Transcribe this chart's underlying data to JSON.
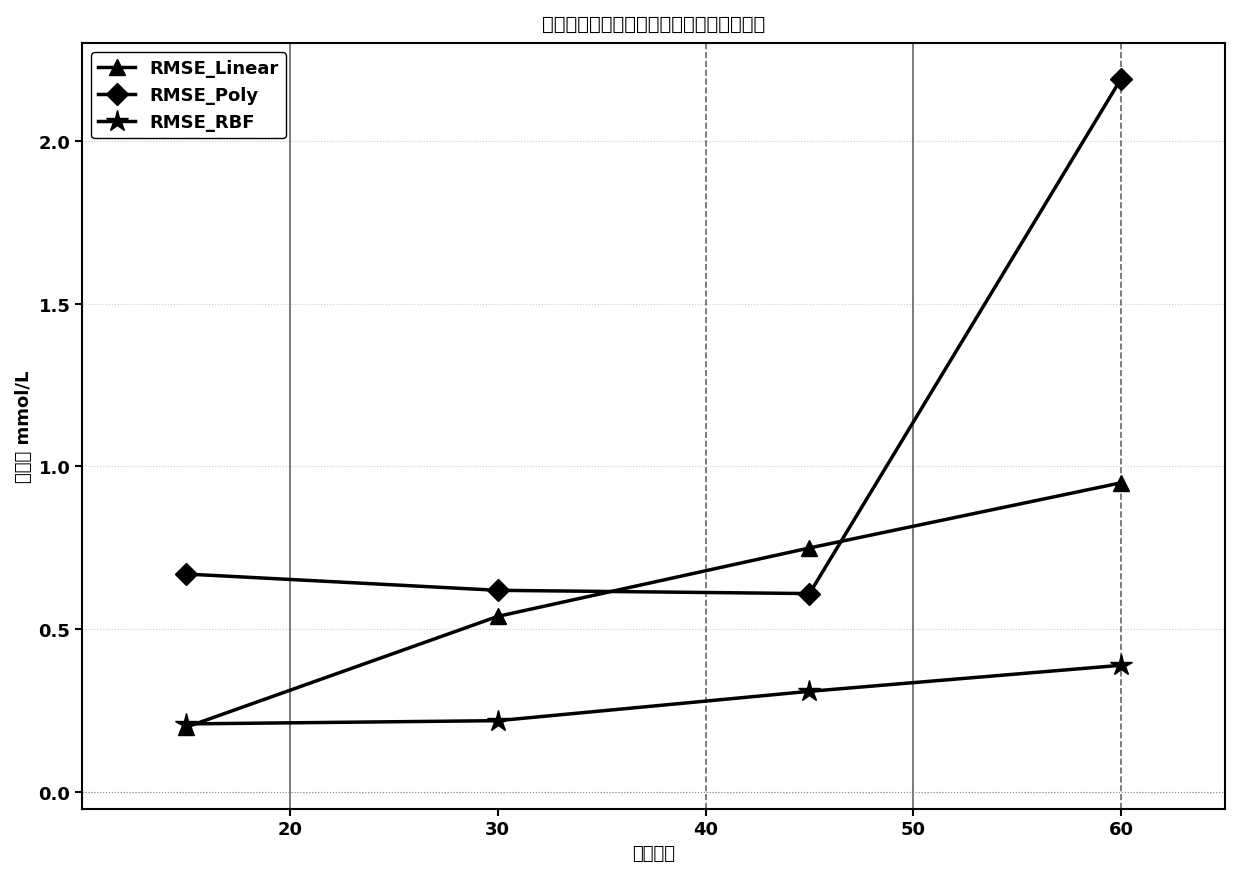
{
  "title": "不同核函数在不同预测时长下的均方根误差",
  "xlabel": "预测时长",
  "ylabel": "血糖值 mmol/L",
  "x": [
    15,
    30,
    45,
    60
  ],
  "linear": [
    0.2,
    0.54,
    0.75,
    0.95
  ],
  "poly": [
    0.67,
    0.62,
    0.61,
    2.19
  ],
  "rbf": [
    0.21,
    0.22,
    0.31,
    0.39
  ],
  "line_color": "#000000",
  "bg_color": "#ffffff",
  "plot_bg_color": "#ffffff",
  "grid_color": "#aaaaaa",
  "ylim": [
    -0.05,
    2.3
  ],
  "xlim": [
    10,
    65
  ],
  "xticks": [
    20,
    30,
    40,
    50,
    60
  ],
  "yticks": [
    0.0,
    0.5,
    1.0,
    1.5,
    2.0
  ],
  "vlines_solid": [
    20,
    50
  ],
  "vlines_dashed": [
    40,
    60
  ],
  "legend_labels": [
    "RMSE_Linear",
    "RMSE_Poly",
    "RMSE_RBF"
  ],
  "title_fontsize": 14,
  "label_fontsize": 13,
  "tick_fontsize": 13,
  "legend_fontsize": 13,
  "linewidth": 2.5,
  "markersize": 11
}
